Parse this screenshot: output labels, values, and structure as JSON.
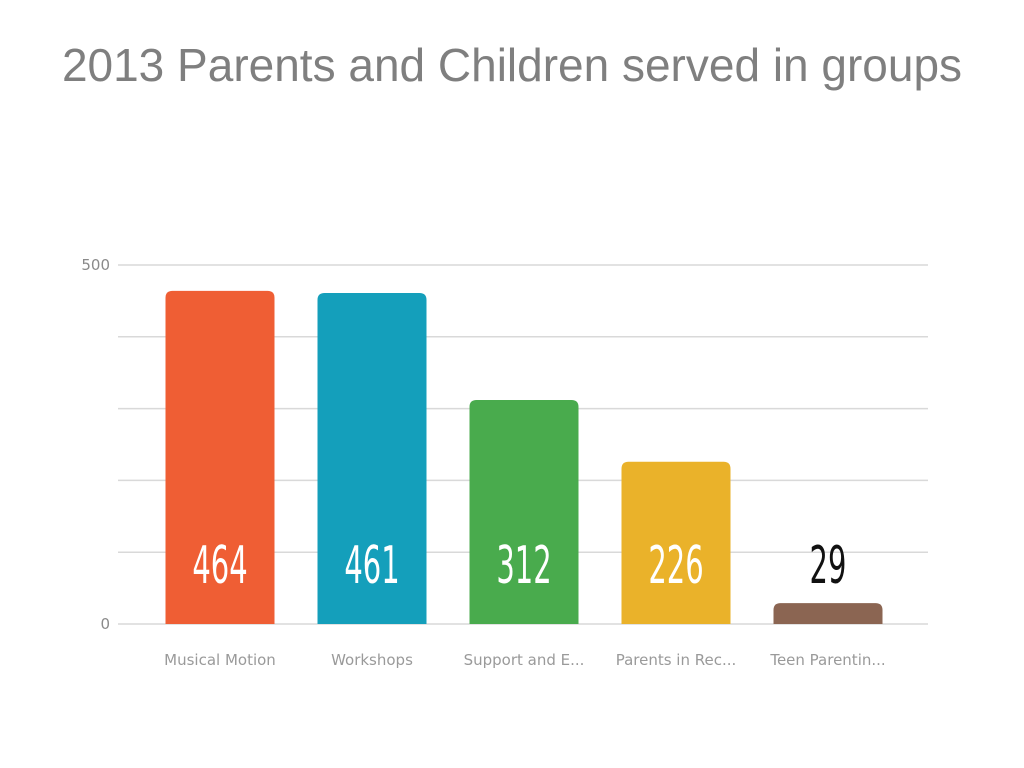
{
  "chart_data": {
    "type": "bar",
    "title": "2013 Parents and Children served in groups",
    "categories": [
      "Musical Motion",
      "Workshops",
      "Support and E...",
      "Parents in Rec...",
      "Teen Parentin..."
    ],
    "values": [
      464,
      461,
      312,
      226,
      29
    ],
    "colors": [
      "#ef5e34",
      "#149fbb",
      "#49ab4d",
      "#eab22a",
      "#8b6552"
    ],
    "value_label_colors": [
      "#ffffff",
      "#ffffff",
      "#ffffff",
      "#ffffff",
      "#111111"
    ],
    "ylim": [
      0,
      500
    ],
    "y_tick_labels": [
      "500",
      "0"
    ],
    "y_gridline_values": [
      0,
      100,
      200,
      300,
      400,
      500
    ],
    "grid": true,
    "legend": "none"
  }
}
